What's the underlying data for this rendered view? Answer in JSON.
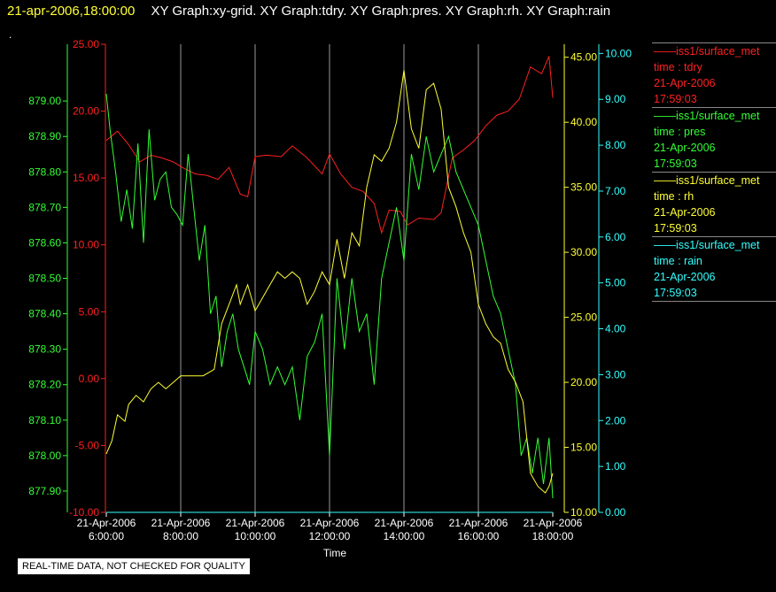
{
  "header": {
    "timestamp": "21-apr-2006,18:00:00",
    "graph_titles": "XY Graph:xy-grid.  XY Graph:tdry.  XY Graph:pres.  XY Graph:rh.  XY Graph:rain"
  },
  "marker": ".",
  "notice": "REAL-TIME DATA, NOT CHECKED FOR QUALITY",
  "legend": [
    {
      "name": "iss1/surface_met",
      "var": "time : tdry",
      "date": "21-Apr-2006",
      "time": "17:59:03",
      "color": "#ff2020"
    },
    {
      "name": "iss1/surface_met",
      "var": "time : pres",
      "date": "21-Apr-2006",
      "time": "17:59:03",
      "color": "#33ff33"
    },
    {
      "name": "iss1/surface_met",
      "var": "time : rh",
      "date": "21-Apr-2006",
      "time": "17:59:03",
      "color": "#ffff33"
    },
    {
      "name": "iss1/surface_met",
      "var": "time : rain",
      "date": "21-Apr-2006",
      "time": "17:59:03",
      "color": "#33ffff"
    }
  ],
  "chart_data": {
    "type": "line",
    "xlabel": "Time",
    "xlim": [
      6,
      18
    ],
    "x_ticks": [
      6,
      8,
      10,
      12,
      14,
      16,
      18
    ],
    "x_tick_labels": [
      [
        "21-Apr-2006",
        "6:00:00"
      ],
      [
        "21-Apr-2006",
        "8:00:00"
      ],
      [
        "21-Apr-2006",
        "10:00:00"
      ],
      [
        "21-Apr-2006",
        "12:00:00"
      ],
      [
        "21-Apr-2006",
        "14:00:00"
      ],
      [
        "21-Apr-2006",
        "16:00:00"
      ],
      [
        "21-Apr-2006",
        "18:00:00"
      ]
    ],
    "grid": "vertical",
    "axes": {
      "pres": {
        "side": "left",
        "color": "#33ff33",
        "ylim": [
          877.84,
          879.16
        ],
        "ticks": [
          "877.90",
          "878.00",
          "878.10",
          "878.20",
          "878.30",
          "878.40",
          "878.50",
          "878.60",
          "878.70",
          "878.80",
          "878.90",
          "879.00"
        ]
      },
      "tdry": {
        "side": "left",
        "color": "#ff2020",
        "ylim": [
          -10,
          25
        ],
        "ticks": [
          "-10.00",
          "-5.00",
          "0.00",
          "5.00",
          "10.00",
          "15.00",
          "20.00",
          "25.00"
        ]
      },
      "rh": {
        "side": "right",
        "color": "#ffff33",
        "ylim": [
          10,
          46
        ],
        "ticks": [
          "10.00",
          "15.00",
          "20.00",
          "25.00",
          "30.00",
          "35.00",
          "40.00",
          "45.00"
        ]
      },
      "rain": {
        "side": "right",
        "color": "#33ffff",
        "ylim": [
          0,
          10.2
        ],
        "ticks": [
          "0.00",
          "1.00",
          "2.00",
          "3.00",
          "4.00",
          "5.00",
          "6.00",
          "7.00",
          "8.00",
          "9.00",
          "10.00"
        ]
      }
    },
    "series": [
      {
        "name": "iss1/surface_met time : tdry",
        "axis": "tdry",
        "color": "#ff2020",
        "x": [
          6.0,
          6.3,
          6.6,
          6.9,
          7.2,
          7.5,
          7.8,
          8.1,
          8.4,
          8.7,
          9.0,
          9.3,
          9.6,
          9.8,
          10.0,
          10.3,
          10.7,
          11.0,
          11.4,
          11.8,
          12.0,
          12.3,
          12.6,
          12.9,
          13.2,
          13.4,
          13.6,
          13.9,
          14.1,
          14.4,
          14.8,
          15.0,
          15.3,
          15.6,
          15.9,
          16.2,
          16.5,
          16.8,
          17.1,
          17.4,
          17.7,
          17.9,
          18.0
        ],
        "y": [
          17.8,
          18.5,
          17.5,
          16.2,
          16.7,
          16.5,
          16.2,
          15.7,
          15.3,
          15.2,
          14.9,
          15.8,
          13.8,
          13.6,
          16.6,
          16.7,
          16.6,
          17.4,
          16.5,
          15.3,
          16.8,
          15.3,
          14.3,
          14.0,
          13.1,
          10.9,
          12.6,
          12.5,
          11.5,
          12.0,
          11.9,
          12.4,
          16.5,
          17.1,
          17.8,
          18.9,
          19.7,
          20.0,
          20.9,
          23.3,
          22.8,
          24.1,
          21.0
        ]
      },
      {
        "name": "iss1/surface_met time : pres",
        "axis": "pres",
        "color": "#33ff33",
        "x": [
          6.0,
          6.1,
          6.25,
          6.4,
          6.55,
          6.7,
          6.85,
          7.0,
          7.15,
          7.3,
          7.45,
          7.6,
          7.75,
          7.9,
          8.05,
          8.2,
          8.35,
          8.5,
          8.65,
          8.8,
          8.95,
          9.1,
          9.25,
          9.4,
          9.55,
          9.7,
          9.85,
          10.0,
          10.2,
          10.4,
          10.6,
          10.8,
          11.0,
          11.2,
          11.4,
          11.6,
          11.8,
          12.0,
          12.2,
          12.4,
          12.6,
          12.8,
          13.0,
          13.2,
          13.4,
          13.6,
          13.8,
          14.0,
          14.2,
          14.4,
          14.6,
          14.8,
          15.0,
          15.2,
          15.4,
          15.6,
          15.8,
          16.0,
          16.2,
          16.4,
          16.6,
          16.8,
          17.0,
          17.15,
          17.3,
          17.45,
          17.6,
          17.75,
          17.9,
          18.0
        ],
        "y": [
          879.02,
          878.92,
          878.8,
          878.66,
          878.75,
          878.64,
          878.88,
          878.6,
          878.92,
          878.72,
          878.78,
          878.8,
          878.7,
          878.68,
          878.65,
          878.85,
          878.7,
          878.55,
          878.65,
          878.4,
          878.45,
          878.25,
          878.35,
          878.4,
          878.3,
          878.25,
          878.2,
          878.35,
          878.3,
          878.2,
          878.25,
          878.2,
          878.25,
          878.1,
          878.28,
          878.32,
          878.4,
          878.0,
          878.5,
          878.3,
          878.5,
          878.35,
          878.4,
          878.2,
          878.5,
          878.6,
          878.7,
          878.55,
          878.85,
          878.75,
          878.9,
          878.8,
          878.85,
          878.9,
          878.8,
          878.75,
          878.7,
          878.65,
          878.55,
          878.45,
          878.4,
          878.3,
          878.2,
          878.0,
          878.05,
          877.95,
          878.05,
          877.92,
          878.05,
          877.88
        ]
      },
      {
        "name": "iss1/surface_met time : rh",
        "axis": "rh",
        "color": "#ffff33",
        "x": [
          6.0,
          6.15,
          6.3,
          6.5,
          6.6,
          6.8,
          7.0,
          7.2,
          7.4,
          7.6,
          7.8,
          8.0,
          8.3,
          8.6,
          8.9,
          9.1,
          9.3,
          9.5,
          9.6,
          9.8,
          10.0,
          10.2,
          10.4,
          10.6,
          10.8,
          11.0,
          11.2,
          11.4,
          11.6,
          11.8,
          12.0,
          12.2,
          12.4,
          12.6,
          12.8,
          13.0,
          13.2,
          13.4,
          13.6,
          13.8,
          14.0,
          14.2,
          14.4,
          14.6,
          14.8,
          15.0,
          15.2,
          15.4,
          15.6,
          15.8,
          16.0,
          16.2,
          16.4,
          16.6,
          16.8,
          17.0,
          17.2,
          17.4,
          17.6,
          17.8,
          17.9,
          18.0
        ],
        "y": [
          14.5,
          15.5,
          17.5,
          17.0,
          18.3,
          19.0,
          18.5,
          19.5,
          20.0,
          19.5,
          20.0,
          20.5,
          20.5,
          20.5,
          21.0,
          24.5,
          26.0,
          27.5,
          26.0,
          27.5,
          25.5,
          26.5,
          27.5,
          28.5,
          28.0,
          28.5,
          28.0,
          26.0,
          27.0,
          28.5,
          27.5,
          31.0,
          28.0,
          31.5,
          30.5,
          35.0,
          37.5,
          37.0,
          38.0,
          40.0,
          44.0,
          39.5,
          38.0,
          42.5,
          43.0,
          41.0,
          35.0,
          33.5,
          31.5,
          30.0,
          26.0,
          24.5,
          23.5,
          23.0,
          21.0,
          20.0,
          18.5,
          13.0,
          12.0,
          11.5,
          12.0,
          13.0
        ]
      },
      {
        "name": "iss1/surface_met time : rain",
        "axis": "rain",
        "color": "#33ffff",
        "x": [
          6.0,
          18.0
        ],
        "y": [
          0.0,
          0.0
        ]
      }
    ]
  }
}
